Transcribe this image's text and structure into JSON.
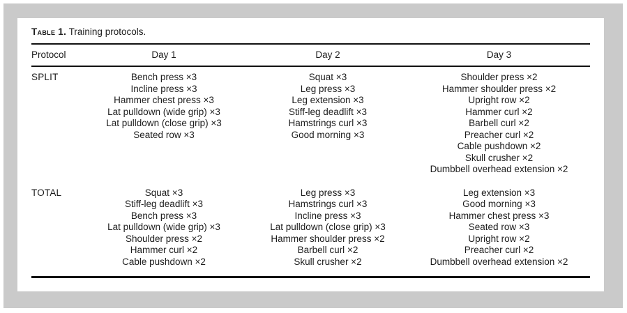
{
  "colors": {
    "frame": "#cacaca",
    "card": "#ffffff",
    "text": "#1c1c1c",
    "rule": "#111111"
  },
  "table": {
    "label": "Table 1.",
    "title": "Training protocols.",
    "columns": [
      "Protocol",
      "Day 1",
      "Day 2",
      "Day 3"
    ],
    "sections": [
      {
        "protocol": "SPLIT",
        "days": [
          [
            "Bench press ×3",
            "Incline press ×3",
            "Hammer chest press ×3",
            "Lat pulldown (wide grip) ×3",
            "Lat pulldown (close grip) ×3",
            "Seated row ×3"
          ],
          [
            "Squat ×3",
            "Leg press ×3",
            "Leg extension ×3",
            "Stiff-leg deadlift ×3",
            "Hamstrings curl ×3",
            "Good morning ×3"
          ],
          [
            "Shoulder press ×2",
            "Hammer shoulder press ×2",
            "Upright row ×2",
            "Hammer curl ×2",
            "Barbell curl ×2",
            "Preacher curl ×2",
            "Cable pushdown ×2",
            "Skull crusher ×2",
            "Dumbbell overhead extension ×2"
          ]
        ]
      },
      {
        "protocol": "TOTAL",
        "days": [
          [
            "Squat ×3",
            "Stiff-leg deadlift ×3",
            "Bench press ×3",
            "Lat pulldown (wide grip) ×3",
            "Shoulder press ×2",
            "Hammer curl ×2",
            "Cable pushdown ×2"
          ],
          [
            "Leg press ×3",
            "Hamstrings curl ×3",
            "Incline press ×3",
            "Lat pulldown (close grip) ×3",
            "Hammer shoulder press ×2",
            "Barbell curl ×2",
            "Skull crusher ×2"
          ],
          [
            "Leg extension ×3",
            "Good morning ×3",
            "Hammer chest press ×3",
            "Seated row ×3",
            "Upright row ×2",
            "Preacher curl ×2",
            "Dumbbell overhead extension ×2"
          ]
        ]
      }
    ]
  }
}
